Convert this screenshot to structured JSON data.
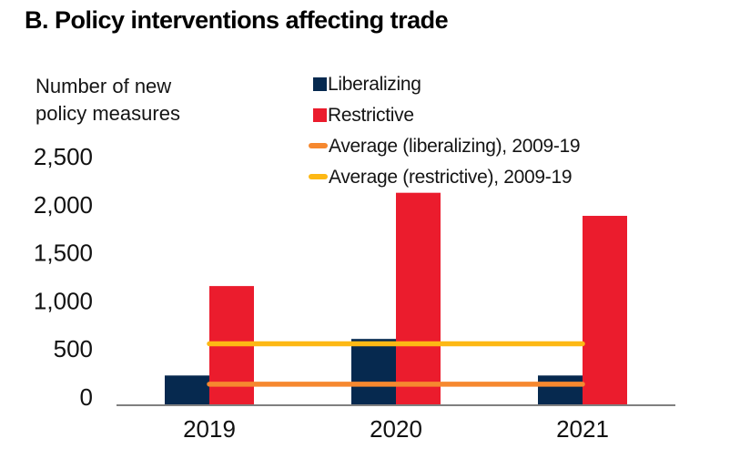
{
  "title": "B. Policy interventions affecting trade",
  "axis_unit_label": "Number of new\npolicy measures",
  "legend": {
    "items": [
      {
        "label": "Liberalizing",
        "marker": "square",
        "color": "#06294f"
      },
      {
        "label": "Restrictive",
        "marker": "square",
        "color": "#eb1c2d"
      },
      {
        "label": "Average (liberalizing), 2009-19",
        "marker": "line",
        "color": "#f6882f"
      },
      {
        "label": "Average (restrictive), 2009-19",
        "marker": "line",
        "color": "#fdb814"
      }
    ]
  },
  "chart_data": {
    "type": "bar",
    "title": "B. Policy interventions affecting trade",
    "ylabel": "Number of new policy measures",
    "categories": [
      "2019",
      "2020",
      "2021"
    ],
    "series": [
      {
        "name": "Liberalizing",
        "type": "bar",
        "color": "#06294f",
        "values": [
          300,
          680,
          300
        ]
      },
      {
        "name": "Restrictive",
        "type": "bar",
        "color": "#eb1c2d",
        "values": [
          1230,
          2200,
          1960
        ]
      },
      {
        "name": "Average (liberalizing), 2009-19",
        "type": "hline",
        "color": "#f6882f",
        "value": 210
      },
      {
        "name": "Average (restrictive), 2009-19",
        "type": "hline",
        "color": "#fdb814",
        "value": 630
      }
    ],
    "ylim": [
      0,
      2500
    ],
    "yticks": [
      0,
      500,
      1000,
      1500,
      2000,
      2500
    ],
    "ytick_labels": [
      "0",
      "500",
      "1,000",
      "1,500",
      "2,000",
      "2,500"
    ],
    "grid": false,
    "legend_position": "top-right",
    "axis_color": "#808080",
    "text_color": "#111111"
  }
}
